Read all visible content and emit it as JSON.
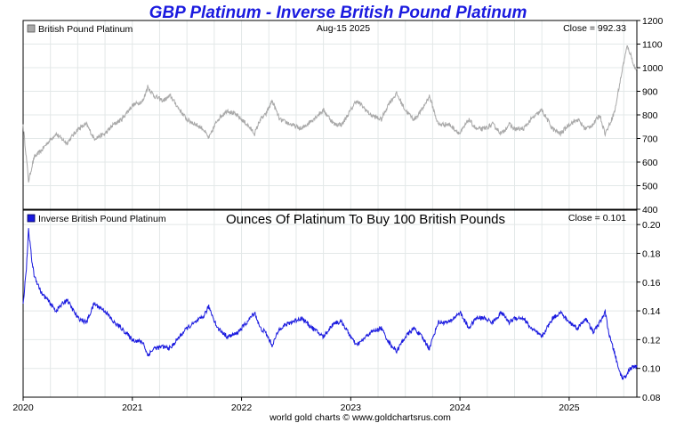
{
  "page": {
    "title": "GBP Platinum - Inverse British Pound Platinum",
    "date_label": "Aug-15  2025",
    "credit": "world gold charts © www.goldchartsrus.com"
  },
  "colors": {
    "title": "#1a1adf",
    "top_series": "#a9a9a9",
    "bottom_series": "#1a1adf",
    "grid": "#e3e8e8"
  },
  "chart_data": [
    {
      "type": "line",
      "legend": "British Pound Platinum",
      "legend_position": "top-left",
      "close_label": "Close = 992.33",
      "x_ticks": [
        "2020",
        "2021",
        "2022",
        "2023",
        "2024",
        "2025"
      ],
      "y_ticks": [
        "400",
        "500",
        "600",
        "700",
        "800",
        "900",
        "1000",
        "1100",
        "1200"
      ],
      "ylim": [
        400,
        1200
      ],
      "xlim": [
        2020.0,
        2025.62
      ],
      "grid": true,
      "x": [
        2020.0,
        2020.05,
        2020.1,
        2020.17,
        2020.22,
        2020.3,
        2020.4,
        2020.5,
        2020.58,
        2020.65,
        2020.75,
        2020.83,
        2020.9,
        2021.0,
        2021.1,
        2021.14,
        2021.2,
        2021.28,
        2021.35,
        2021.42,
        2021.5,
        2021.58,
        2021.65,
        2021.7,
        2021.78,
        2021.87,
        2021.95,
        2022.05,
        2022.12,
        2022.17,
        2022.22,
        2022.28,
        2022.35,
        2022.45,
        2022.55,
        2022.65,
        2022.75,
        2022.85,
        2022.92,
        2023.0,
        2023.05,
        2023.1,
        2023.18,
        2023.28,
        2023.35,
        2023.42,
        2023.5,
        2023.58,
        2023.65,
        2023.72,
        2023.8,
        2023.9,
        2024.0,
        2024.08,
        2024.15,
        2024.22,
        2024.3,
        2024.38,
        2024.45,
        2024.5,
        2024.58,
        2024.65,
        2024.75,
        2024.85,
        2024.92,
        2025.0,
        2025.08,
        2025.15,
        2025.22,
        2025.28,
        2025.33,
        2025.37,
        2025.42,
        2025.45,
        2025.49,
        2025.53,
        2025.56,
        2025.6,
        2025.62
      ],
      "values": [
        760,
        520,
        620,
        650,
        680,
        720,
        680,
        740,
        760,
        700,
        720,
        760,
        780,
        840,
        860,
        920,
        880,
        860,
        880,
        830,
        780,
        760,
        740,
        700,
        780,
        820,
        800,
        760,
        720,
        780,
        800,
        860,
        780,
        760,
        740,
        780,
        820,
        760,
        760,
        820,
        860,
        840,
        800,
        780,
        850,
        890,
        820,
        780,
        820,
        880,
        760,
        760,
        720,
        780,
        740,
        740,
        760,
        720,
        760,
        740,
        740,
        780,
        820,
        740,
        720,
        760,
        780,
        740,
        760,
        800,
        720,
        760,
        820,
        900,
        1000,
        1090,
        1060,
        1000,
        992.33
      ]
    },
    {
      "type": "line",
      "legend": "Inverse British Pound Platinum",
      "legend_position": "top-left",
      "subtitle": "Ounces Of Platinum To Buy 100 British Pounds",
      "close_label": "Close = 0.101",
      "x_ticks": [
        "2020",
        "2021",
        "2022",
        "2023",
        "2024",
        "2025"
      ],
      "y_ticks": [
        "0.08",
        "0.10",
        "0.12",
        "0.14",
        "0.16",
        "0.18",
        "0.20"
      ],
      "ylim": [
        0.08,
        0.21
      ],
      "xlim": [
        2020.0,
        2025.62
      ],
      "grid": true,
      "x": [
        2020.0,
        2020.03,
        2020.05,
        2020.08,
        2020.1,
        2020.17,
        2020.22,
        2020.3,
        2020.4,
        2020.5,
        2020.58,
        2020.65,
        2020.75,
        2020.83,
        2020.9,
        2021.0,
        2021.1,
        2021.14,
        2021.2,
        2021.28,
        2021.35,
        2021.42,
        2021.5,
        2021.58,
        2021.65,
        2021.7,
        2021.78,
        2021.87,
        2021.95,
        2022.05,
        2022.12,
        2022.17,
        2022.22,
        2022.28,
        2022.35,
        2022.45,
        2022.55,
        2022.65,
        2022.75,
        2022.85,
        2022.92,
        2023.0,
        2023.05,
        2023.1,
        2023.18,
        2023.28,
        2023.35,
        2023.42,
        2023.5,
        2023.58,
        2023.65,
        2023.72,
        2023.8,
        2023.9,
        2024.0,
        2024.08,
        2024.15,
        2024.22,
        2024.3,
        2024.38,
        2024.45,
        2024.5,
        2024.58,
        2024.65,
        2024.75,
        2024.85,
        2024.92,
        2025.0,
        2025.08,
        2025.15,
        2025.22,
        2025.28,
        2025.33,
        2025.37,
        2025.42,
        2025.45,
        2025.49,
        2025.53,
        2025.56,
        2025.6,
        2025.62
      ],
      "values": [
        0.145,
        0.17,
        0.196,
        0.175,
        0.165,
        0.152,
        0.148,
        0.14,
        0.148,
        0.135,
        0.132,
        0.145,
        0.14,
        0.132,
        0.128,
        0.12,
        0.118,
        0.109,
        0.114,
        0.115,
        0.114,
        0.121,
        0.128,
        0.132,
        0.136,
        0.143,
        0.128,
        0.122,
        0.124,
        0.132,
        0.139,
        0.128,
        0.125,
        0.116,
        0.128,
        0.132,
        0.135,
        0.128,
        0.122,
        0.132,
        0.132,
        0.122,
        0.116,
        0.119,
        0.125,
        0.128,
        0.118,
        0.112,
        0.122,
        0.128,
        0.122,
        0.114,
        0.132,
        0.132,
        0.139,
        0.128,
        0.135,
        0.135,
        0.132,
        0.139,
        0.132,
        0.135,
        0.135,
        0.128,
        0.122,
        0.135,
        0.139,
        0.132,
        0.128,
        0.135,
        0.125,
        0.132,
        0.139,
        0.122,
        0.11,
        0.1,
        0.093,
        0.096,
        0.1,
        0.101,
        0.101
      ]
    }
  ]
}
